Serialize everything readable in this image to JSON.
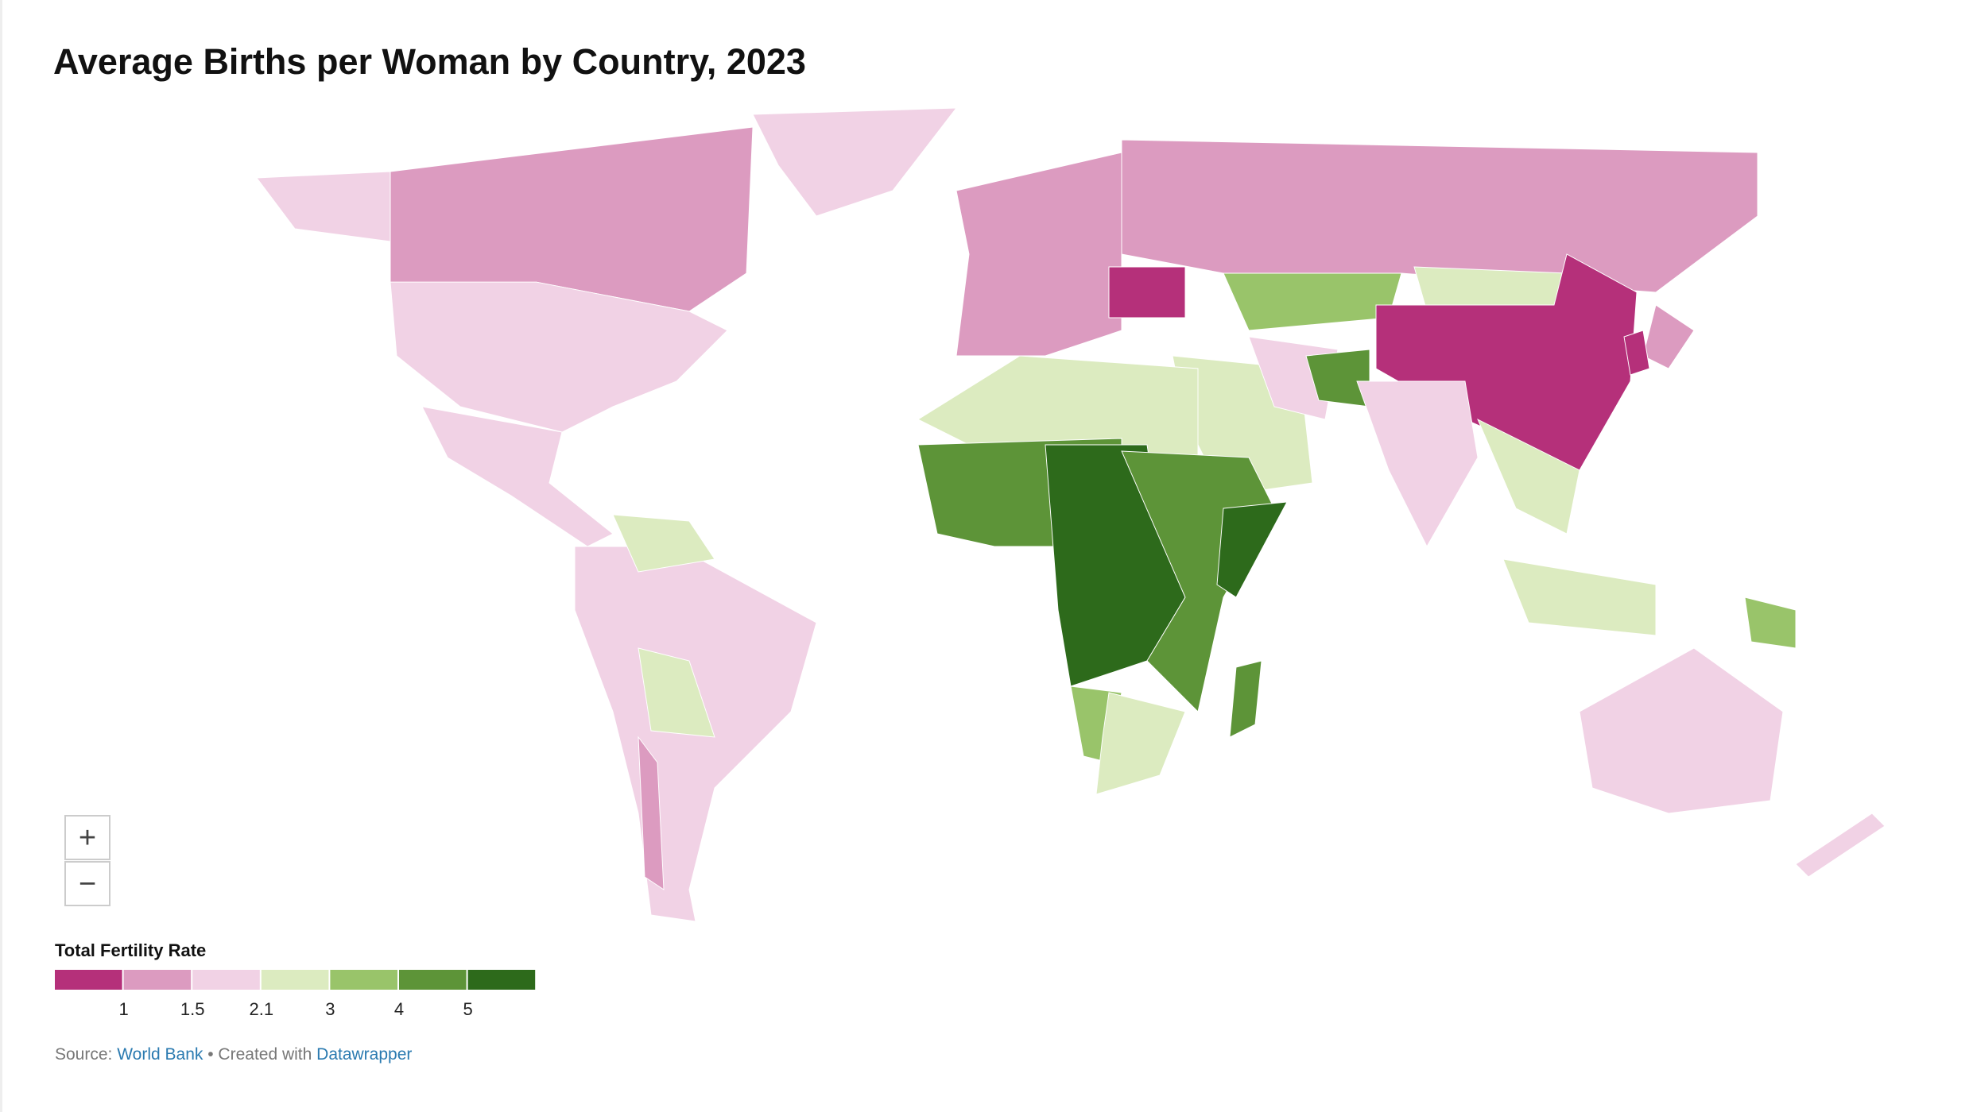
{
  "header": {
    "title": "Average Births per Woman by Country, 2023"
  },
  "controls": {
    "zoom_in": "+",
    "zoom_out": "−"
  },
  "legend": {
    "title": "Total Fertility Rate",
    "colors": [
      "#b5307a",
      "#dc9bc0",
      "#f1d2e5",
      "#dcebc0",
      "#99c46a",
      "#5d9438",
      "#2d6a1b"
    ],
    "ticks": [
      1,
      1.5,
      2.1,
      3,
      4,
      5
    ]
  },
  "footer": {
    "source_label": "Source:",
    "source_name": "World Bank",
    "created_label": "• Created with",
    "tool_name": "Datawrapper"
  }
}
